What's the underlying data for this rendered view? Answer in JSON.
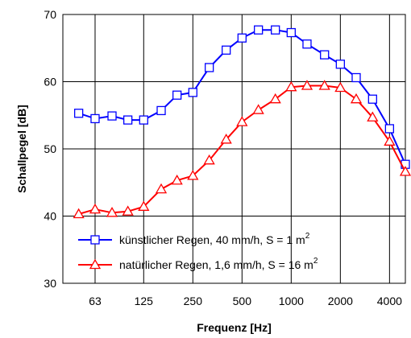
{
  "chart_data": {
    "type": "line",
    "xlabel": "Frequenz [Hz]",
    "ylabel": "Schallpegel [dB]",
    "xscale": "log",
    "xlim": [
      40,
      5000
    ],
    "ylim": [
      30,
      70
    ],
    "grid": true,
    "legend_position": "bottom-center",
    "x_tick_labels": [
      "63",
      "125",
      "250",
      "500",
      "1000",
      "2000",
      "4000"
    ],
    "y_tick_labels": [
      "30",
      "40",
      "50",
      "60",
      "70"
    ],
    "x": [
      50,
      63,
      80,
      100,
      125,
      160,
      200,
      250,
      315,
      400,
      500,
      630,
      800,
      1000,
      1250,
      1600,
      2000,
      2500,
      3150,
      4000,
      5000
    ],
    "series": [
      {
        "name": "künstlicher Regen, 40 mm/h, S = 1 m",
        "superscript": "2",
        "color": "#0000ff",
        "marker": "square",
        "values": [
          55.3,
          54.5,
          54.9,
          54.3,
          54.3,
          55.7,
          58.0,
          58.4,
          62.1,
          64.7,
          66.5,
          67.7,
          67.7,
          67.3,
          65.6,
          64.0,
          62.6,
          60.6,
          57.4,
          53.0,
          47.7
        ]
      },
      {
        "name": "natürlicher Regen, 1,6 mm/h, S = 16 m",
        "superscript": "2",
        "color": "#ff0000",
        "marker": "triangle",
        "values": [
          40.3,
          41.0,
          40.5,
          40.7,
          41.4,
          44.0,
          45.3,
          46.0,
          48.3,
          51.4,
          54.0,
          55.8,
          57.4,
          59.2,
          59.4,
          59.4,
          59.1,
          57.4,
          54.7,
          51.1,
          46.6
        ]
      }
    ]
  }
}
